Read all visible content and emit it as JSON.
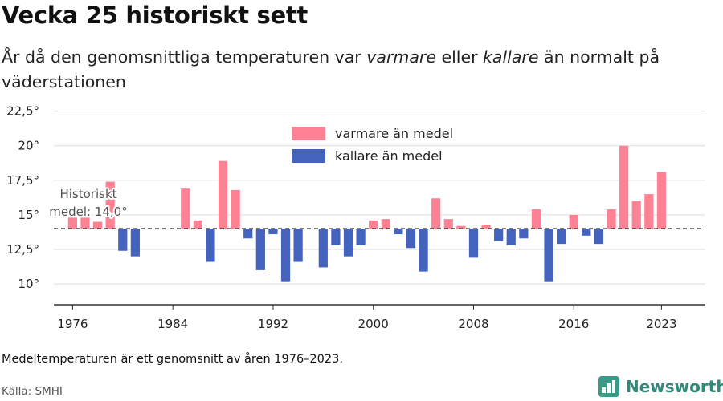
{
  "header": {
    "title": "Vecka 25 historiskt sett",
    "subtitle_part1": "År då den genomsnittliga temperaturen var ",
    "subtitle_em1": "varmare",
    "subtitle_part2": " eller ",
    "subtitle_em2": "kallare",
    "subtitle_part3": " än normalt på väderstationen"
  },
  "footer": {
    "note": "Medeltemperaturen är ett genomsnitt av åren 1976–2023.",
    "source": "Källa: SMHI",
    "brand": "Newsworthy"
  },
  "chart_data": {
    "type": "bar",
    "baseline": 14.0,
    "baseline_label_line1": "Historiskt",
    "baseline_label_line2": "medel: 14,0°",
    "ylim": [
      8.5,
      23
    ],
    "y_ticks": [
      10,
      12.5,
      15,
      17.5,
      20,
      22.5
    ],
    "y_tick_labels": [
      "10°",
      "12,5°",
      "15°",
      "17,5°",
      "20°",
      "22,5°"
    ],
    "x_ticks": [
      1976,
      1984,
      1992,
      2000,
      2008,
      2016,
      2023
    ],
    "x_tick_labels": [
      "1976",
      "1984",
      "1992",
      "2000",
      "2008",
      "2016",
      "2023"
    ],
    "xlim": [
      1974.5,
      2026.5
    ],
    "grid": true,
    "legend_placement": "top-center",
    "series": [
      {
        "name": "varmare än medel",
        "color": "#ff8294"
      },
      {
        "name": "kallare än medel",
        "color": "#4363bf"
      }
    ],
    "data": [
      {
        "year": 1976,
        "value": 14.8
      },
      {
        "year": 1977,
        "value": 14.8
      },
      {
        "year": 1978,
        "value": 14.5
      },
      {
        "year": 1979,
        "value": 17.4
      },
      {
        "year": 1980,
        "value": 12.4
      },
      {
        "year": 1981,
        "value": 12.0
      },
      {
        "year": 1985,
        "value": 16.9
      },
      {
        "year": 1986,
        "value": 14.6
      },
      {
        "year": 1987,
        "value": 11.6
      },
      {
        "year": 1988,
        "value": 18.9
      },
      {
        "year": 1989,
        "value": 16.8
      },
      {
        "year": 1990,
        "value": 13.3
      },
      {
        "year": 1991,
        "value": 11.0
      },
      {
        "year": 1992,
        "value": 13.6
      },
      {
        "year": 1993,
        "value": 10.2
      },
      {
        "year": 1994,
        "value": 11.6
      },
      {
        "year": 1996,
        "value": 11.2
      },
      {
        "year": 1997,
        "value": 12.8
      },
      {
        "year": 1998,
        "value": 12.0
      },
      {
        "year": 1999,
        "value": 12.8
      },
      {
        "year": 2000,
        "value": 14.6
      },
      {
        "year": 2001,
        "value": 14.7
      },
      {
        "year": 2002,
        "value": 13.6
      },
      {
        "year": 2003,
        "value": 12.6
      },
      {
        "year": 2004,
        "value": 10.9
      },
      {
        "year": 2005,
        "value": 16.2
      },
      {
        "year": 2006,
        "value": 14.7
      },
      {
        "year": 2007,
        "value": 14.2
      },
      {
        "year": 2008,
        "value": 11.9
      },
      {
        "year": 2009,
        "value": 14.3
      },
      {
        "year": 2010,
        "value": 13.1
      },
      {
        "year": 2011,
        "value": 12.8
      },
      {
        "year": 2012,
        "value": 13.3
      },
      {
        "year": 2013,
        "value": 15.4
      },
      {
        "year": 2014,
        "value": 10.2
      },
      {
        "year": 2015,
        "value": 12.9
      },
      {
        "year": 2016,
        "value": 15.0
      },
      {
        "year": 2017,
        "value": 13.5
      },
      {
        "year": 2018,
        "value": 12.9
      },
      {
        "year": 2019,
        "value": 15.4
      },
      {
        "year": 2020,
        "value": 20.0
      },
      {
        "year": 2021,
        "value": 16.0
      },
      {
        "year": 2022,
        "value": 16.5
      },
      {
        "year": 2023,
        "value": 18.1
      }
    ]
  }
}
